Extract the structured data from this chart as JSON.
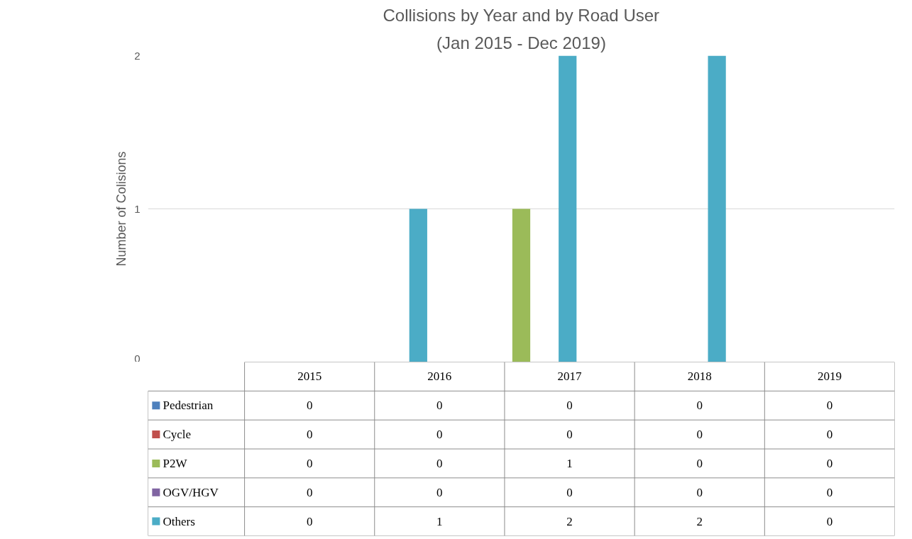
{
  "chart_data": {
    "type": "bar",
    "title": "Collisions by Year and by Road User",
    "subtitle": "(Jan 2015 - Dec 2019)",
    "ylabel": "Number of Colisions",
    "categories": [
      "2015",
      "2016",
      "2017",
      "2018",
      "2019"
    ],
    "series": [
      {
        "name": "Pedestrian",
        "color": "#4f81bd",
        "values": [
          0,
          0,
          0,
          0,
          0
        ]
      },
      {
        "name": "Cycle",
        "color": "#c0504d",
        "values": [
          0,
          0,
          0,
          0,
          0
        ]
      },
      {
        "name": "P2W",
        "color": "#9bbb59",
        "values": [
          0,
          0,
          1,
          0,
          0
        ]
      },
      {
        "name": "OGV/HGV",
        "color": "#8064a2",
        "values": [
          0,
          0,
          0,
          0,
          0
        ]
      },
      {
        "name": "Others",
        "color": "#4bacc6",
        "values": [
          0,
          1,
          2,
          2,
          0
        ]
      }
    ],
    "ylim": [
      0,
      2
    ],
    "yticks": [
      0,
      1,
      2
    ],
    "grid": "y",
    "legend": "bottom",
    "data_labels": true
  }
}
